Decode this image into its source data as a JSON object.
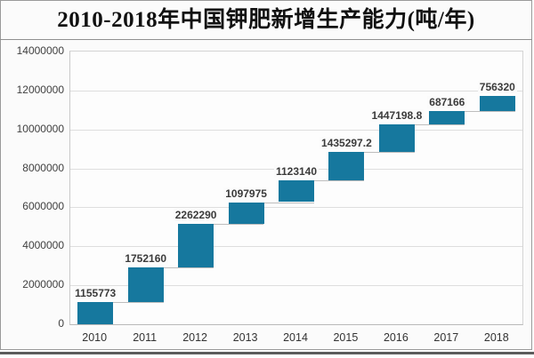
{
  "page": {
    "title": "2010-2018年中国钾肥新增生产能力(吨/年)"
  },
  "chart_data": {
    "type": "bar",
    "subtype": "waterfall",
    "title": "2010-2018年中国钾肥新增生产能力(吨/年)",
    "unit": "吨/年",
    "categories": [
      "2010",
      "2011",
      "2012",
      "2013",
      "2014",
      "2015",
      "2016",
      "2017",
      "2018"
    ],
    "values": [
      1155773,
      1752160,
      2262290,
      1097975,
      1123140,
      1435297.2,
      1447198.8,
      687166,
      756320
    ],
    "value_labels": [
      "1155773",
      "1752160",
      "2262290",
      "1097975",
      "1123140",
      "1435297.2",
      "1447198.8",
      "687166",
      "756320"
    ],
    "stacking": "each bar starts at the cumulative sum of previous bars",
    "ylim": [
      0,
      14000000
    ],
    "y_tick_interval": 2000000,
    "y_ticks": [
      "0",
      "2000000",
      "4000000",
      "6000000",
      "8000000",
      "10000000",
      "12000000",
      "14000000"
    ],
    "grid": true,
    "legend": "none",
    "colors": {
      "bar": "#16789E",
      "gridline": "#dedede",
      "connector": "#bdbdbd",
      "label_text": "#3b3b3b",
      "axis_text": "#404040",
      "title_text": "#111111"
    }
  }
}
